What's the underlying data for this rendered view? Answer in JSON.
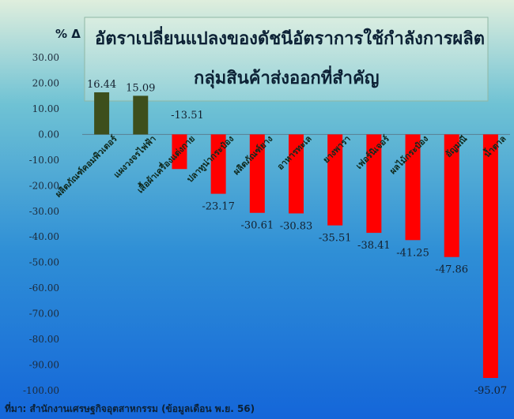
{
  "chart_data": {
    "type": "bar",
    "title": "อัตราเปลี่ยนแปลงของดัชนีอัตราการใช้กำลังการผลิต",
    "subtitle": "กลุ่มสินค้าส่งออกที่สำคัญ",
    "unit_label": "% Δ",
    "source": "ที่มา: สำนักงานเศรษฐกิจอุตสาหกรรม (ข้อมูลเดือน พ.ย. 56)",
    "ylim": [
      -100,
      30
    ],
    "yticks": [
      "30.00",
      "20.00",
      "10.00",
      "0.00",
      "-10.00",
      "-20.00",
      "-30.00",
      "-40.00",
      "-50.00",
      "-60.00",
      "-70.00",
      "-80.00",
      "-90.00",
      "-100.00"
    ],
    "categories": [
      "ผลิตภัณฑ์คอมพิวเตอร์",
      "แผงวงจรไฟฟ้า",
      "เสื้อผ้าเครื่องแต่งกาย",
      "ปลาทูน่ากระป๋อง",
      "ผลิตภัณฑ์ยาง",
      "อาหารทะเล",
      "ยางพารา",
      "เฟอร์นิเจอร์",
      "ผลไม้กระป๋อง",
      "อัญมณี",
      "น้ำตาล"
    ],
    "values": [
      16.44,
      15.09,
      -13.51,
      -23.17,
      -30.61,
      -30.83,
      -35.51,
      -38.41,
      -41.25,
      -47.86,
      -95.07
    ],
    "data_labels": [
      "16.44",
      "15.09",
      "-13.51",
      "-23.17",
      "-30.61",
      "-30.83",
      "-35.51",
      "-38.41",
      "-41.25",
      "-47.86",
      "-95.07"
    ],
    "colors": {
      "positive": "#3d4f1c",
      "negative": "#ff0000"
    }
  }
}
